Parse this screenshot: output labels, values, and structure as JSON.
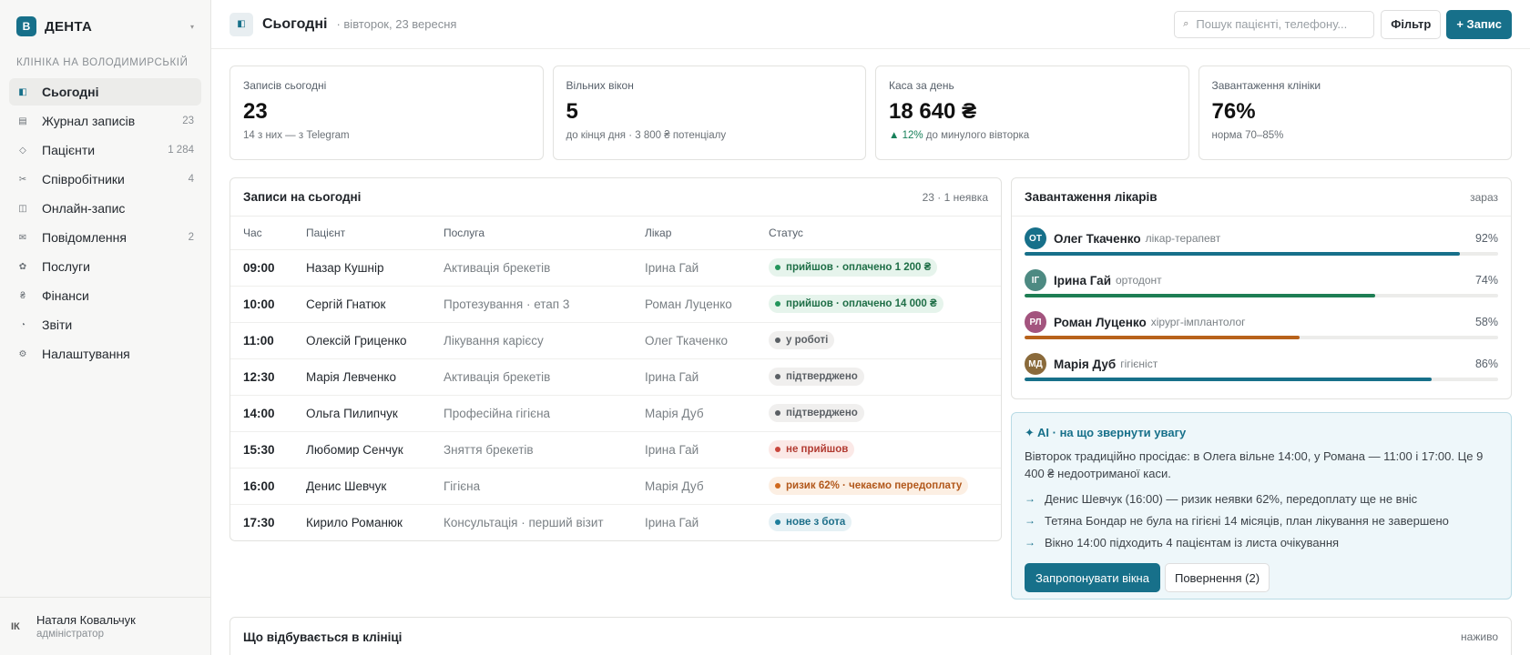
{
  "brand": {
    "logo": "В",
    "name": "ДЕНТА",
    "caret_icon": "chevron-down-icon"
  },
  "sidebar": {
    "clinic_label": "КЛІНІКА НА ВОЛОДИМИРСЬКІЙ",
    "items": [
      {
        "label": "Сьогодні",
        "icon": "◧",
        "count": "",
        "active": true
      },
      {
        "label": "Журнал записів",
        "icon": "▤",
        "count": "23"
      },
      {
        "label": "Пацієнти",
        "icon": "◇",
        "count": "1 284"
      },
      {
        "label": "Співробітники",
        "icon": "✂",
        "count": "4"
      },
      {
        "label": "Онлайн-запис",
        "icon": "◫",
        "count": ""
      },
      {
        "label": "Повідомлення",
        "icon": "✉",
        "count": "2"
      },
      {
        "label": "Послуги",
        "icon": "✿",
        "count": ""
      },
      {
        "label": "Фінанси",
        "icon": "₴",
        "count": ""
      },
      {
        "label": "Звіти",
        "icon": "◔",
        "count": ""
      },
      {
        "label": "Налаштування",
        "icon": "⚙",
        "count": ""
      }
    ],
    "user": {
      "initials": "ІК",
      "name": "Наталя Ковальчук",
      "role": "адміністратор"
    }
  },
  "header": {
    "title": "Сьогодні",
    "date": "· вівторок, 23 вересня",
    "search_placeholder": "Пошук пацієнті, телефону...",
    "filter_label": "Фільтр",
    "add_label": "+ Запис"
  },
  "stats": [
    {
      "label": "Записів сьогодні",
      "value": "23",
      "sub": "14 з них — з Telegram"
    },
    {
      "label": "Вільних вікон",
      "value": "5",
      "sub": "до кінця дня · 3 800 ₴ потенціалу"
    },
    {
      "label": "Каса за день",
      "value": "18 640 ₴",
      "sub_trend": "▲ 12%",
      "sub": " до минулого вівторка"
    },
    {
      "label": "Завантаження клініки",
      "value": "76%",
      "sub": "норма 70–85%"
    }
  ],
  "appointments": {
    "title": "Записи на сьогодні",
    "meta": "23 · 1 неявка",
    "columns": [
      "Час",
      "Пацієнт",
      "Послуга",
      "Лікар",
      "Статус"
    ],
    "rows": [
      {
        "time": "09:00",
        "patient": "Назар Кушнір",
        "service": "Активація брекетів",
        "doctor": "Ірина Гай",
        "status": "прийшов · оплачено 1 200 ₴",
        "tone": "green"
      },
      {
        "time": "10:00",
        "patient": "Сергій Гнатюк",
        "service": "Протезування · етап 3",
        "doctor": "Роман Луценко",
        "status": "прийшов · оплачено 14 000 ₴",
        "tone": "green"
      },
      {
        "time": "11:00",
        "patient": "Олексій Гриценко",
        "service": "Лікування карієсу",
        "doctor": "Олег Ткаченко",
        "status": "у роботі",
        "tone": "gray"
      },
      {
        "time": "12:30",
        "patient": "Марія Левченко",
        "service": "Активація брекетів",
        "doctor": "Ірина Гай",
        "status": "підтверджено",
        "tone": "gray"
      },
      {
        "time": "14:00",
        "patient": "Ольга Пилипчук",
        "service": "Професійна гігієна",
        "doctor": "Марія Дуб",
        "status": "підтверджено",
        "tone": "gray"
      },
      {
        "time": "15:30",
        "patient": "Любомир Сенчук",
        "service": "Зняття брекетів",
        "doctor": "Ірина Гай",
        "status": "не прийшов",
        "tone": "red"
      },
      {
        "time": "16:00",
        "patient": "Денис Шевчук",
        "service": "Гігієна",
        "doctor": "Марія Дуб",
        "status": "ризик 62% · чекаємо передоплату",
        "tone": "orange"
      },
      {
        "time": "17:30",
        "patient": "Кирило Романюк",
        "service": "Консультація · перший візит",
        "doctor": "Ірина Гай",
        "status": "нове з бота",
        "tone": "blue"
      }
    ]
  },
  "doctors": {
    "title": "Завантаження лікарів",
    "meta": "зараз",
    "items": [
      {
        "initials": "ОТ",
        "name": "Олег Ткаченко",
        "role": "лікар-терапевт",
        "percent": "92%",
        "load": 92,
        "color": "#17708a",
        "avatar_color": "#17708a"
      },
      {
        "initials": "ІГ",
        "name": "Ірина Гай",
        "role": "ортодонт",
        "percent": "74%",
        "load": 74,
        "color": "#1e7e54",
        "avatar_color": "#4d8a82"
      },
      {
        "initials": "РЛ",
        "name": "Роман Луценко",
        "role": "хірург-імплантолог",
        "percent": "58%",
        "load": 58,
        "color": "#b8621b",
        "avatar_color": "#a3547e"
      },
      {
        "initials": "МД",
        "name": "Марія Дуб",
        "role": "гігієніст",
        "percent": "86%",
        "load": 86,
        "color": "#17708a",
        "avatar_color": "#8a6a3b"
      }
    ]
  },
  "ai": {
    "title": "✦ AI · на що звернути увагу",
    "text": "Вівторок традиційно просідає: в Олега вільне 14:00, у Романа — 11:00 і 17:00. Це 9 400 ₴ недоотриманої каси.",
    "items": [
      "Денис Шевчук (16:00) — ризик неявки 62%, передоплату ще не вніс",
      "Тетяна Бондар не була на гігієні 14 місяців, план лікування не завершено",
      "Вікно 14:00 підходить 4 пацієнтам із листа очікування"
    ],
    "primary_label": "Запропонувати вікна",
    "secondary_label": "Повернення (2)"
  },
  "activity": {
    "title": "Що відбувається в клініці",
    "meta": "наживо"
  }
}
